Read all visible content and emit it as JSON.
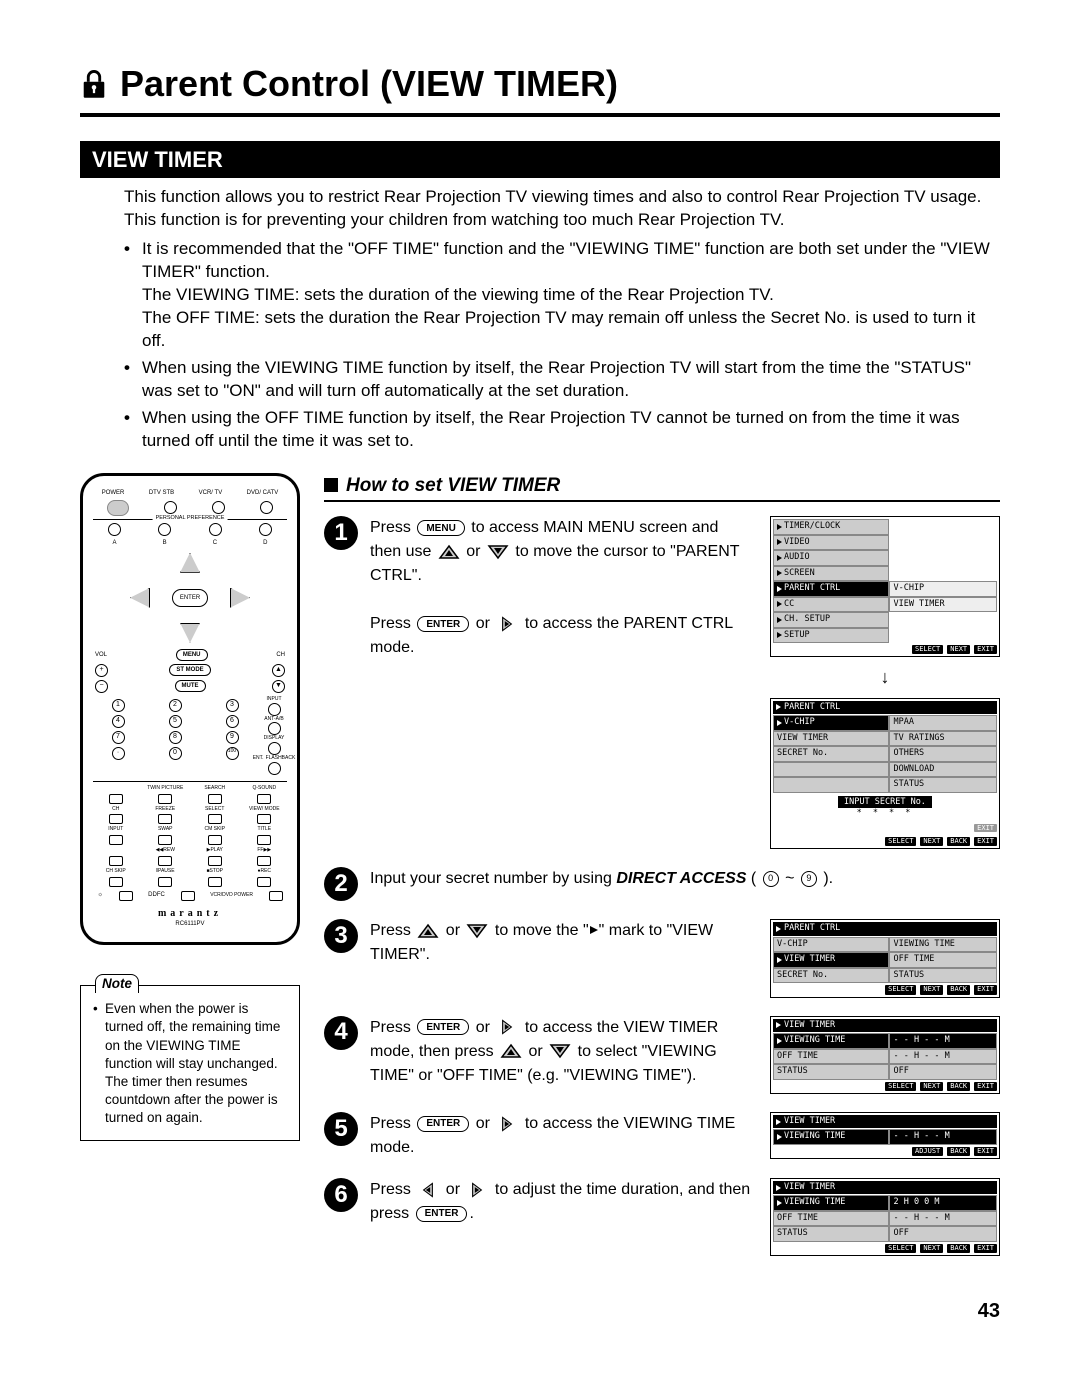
{
  "page_title": "Parent Control (VIEW TIMER)",
  "section_header": "VIEW TIMER",
  "intro": "This function allows you to restrict Rear Projection TV viewing times and also to control Rear Projection TV usage. This function is for preventing your children from watching too much Rear Projection TV.",
  "bullets": [
    {
      "main": "It is recommended that the \"OFF TIME\" function and the \"VIEWING TIME\" function are both set under the \"VIEW TIMER\" function.",
      "subs": [
        "The VIEWING TIME: sets the duration of the viewing time of the Rear Projection TV.",
        "The OFF TIME: sets the duration the Rear Projection TV may remain off unless the Secret No. is used to turn it off."
      ]
    },
    {
      "main": "When using the VIEWING TIME function by itself, the Rear Projection TV will start from the time the \"STATUS\" was set to \"ON\" and will turn off automatically at the set duration.",
      "subs": []
    },
    {
      "main": "When using the OFF TIME function by itself, the Rear Projection TV cannot be turned on from the time it was turned off until the time it was set to.",
      "subs": []
    }
  ],
  "subheading": "How to set VIEW TIMER",
  "buttons": {
    "menu": "MENU",
    "enter": "ENTER",
    "direct_access": "DIRECT ACCESS",
    "zero": "0",
    "nine": "9"
  },
  "steps": [
    {
      "n": "1",
      "text_parts": {
        "a": "Press ",
        "b": " to access MAIN MENU screen and then use ",
        "c": " or ",
        "d": " to move the cursor to \"PARENT CTRL\".",
        "e": "Press ",
        "f": " or ",
        "g": " to access the PARENT CTRL mode."
      }
    },
    {
      "n": "2",
      "text_parts": {
        "a": "Input your secret number by using ",
        "b": " ( ",
        "c": " ~ ",
        "d": " )."
      }
    },
    {
      "n": "3",
      "text_parts": {
        "a": "Press ",
        "b": " or ",
        "c": " to move the \"",
        "d": "\" mark to \"VIEW TIMER\"."
      }
    },
    {
      "n": "4",
      "text_parts": {
        "a": "Press ",
        "b": " or ",
        "c": " to access the VIEW TIMER mode, then press ",
        "d": " or ",
        "e": " to select \"VIEWING TIME\" or \"OFF TIME\" (e.g. \"VIEWING TIME\")."
      }
    },
    {
      "n": "5",
      "text_parts": {
        "a": "Press ",
        "b": " or ",
        "c": " to access the VIEWING TIME mode."
      }
    },
    {
      "n": "6",
      "text_parts": {
        "a": "Press ",
        "b": " or ",
        "c": " to adjust the time duration, and then press ",
        "d": "."
      }
    }
  ],
  "osd": {
    "foot_select": "SELECT",
    "foot_next": "NEXT",
    "foot_back": "BACK",
    "foot_exit": "EXIT",
    "foot_adjust": "ADJUST",
    "menu1": {
      "left": [
        "TIMER/CLOCK",
        "VIDEO",
        "AUDIO",
        "SCREEN",
        "PARENT CTRL",
        "CC",
        "CH. SETUP",
        "SETUP"
      ],
      "right": [
        "V-CHIP",
        "VIEW TIMER"
      ]
    },
    "menu2": {
      "hdr": "PARENT CTRL",
      "left": [
        "V-CHIP",
        "VIEW TIMER",
        "SECRET No."
      ],
      "right": [
        "MPAA",
        "TV RATINGS",
        "OTHERS",
        "DOWNLOAD",
        "STATUS"
      ],
      "prompt": "INPUT SECRET No.",
      "stars": "* * * *",
      "exit": "EXIT"
    },
    "menu3": {
      "hdr": "PARENT CTRL",
      "left": [
        "V-CHIP",
        "VIEW TIMER",
        "SECRET No."
      ],
      "right": [
        "VIEWING TIME",
        "OFF TIME",
        "STATUS"
      ]
    },
    "menu4": {
      "hdr": "VIEW TIMER",
      "rows": [
        [
          "VIEWING TIME",
          "- - H  - - M"
        ],
        [
          "OFF TIME",
          "- - H  - - M"
        ],
        [
          "STATUS",
          "OFF"
        ]
      ]
    },
    "menu5": {
      "hdr": "VIEW TIMER",
      "rows": [
        [
          "VIEWING TIME",
          "- - H  - - M"
        ]
      ]
    },
    "menu6": {
      "hdr": "VIEW TIMER",
      "rows": [
        [
          "VIEWING TIME",
          "2 H  0 0 M"
        ],
        [
          "OFF TIME",
          "- - H  - - M"
        ],
        [
          "STATUS",
          "OFF"
        ]
      ]
    }
  },
  "remote": {
    "top_labels": [
      "POWER",
      "DTV STB",
      "VCR/ TV",
      "DVD/ CATV"
    ],
    "personal_pref": "PERSONAL PREFERENCE",
    "abcd": [
      "A",
      "B",
      "C",
      "D"
    ],
    "enter": "ENTER",
    "side_labels": {
      "vol": "VOL",
      "ch": "CH",
      "menu": "MENU",
      "stmode": "ST MODE",
      "mute": "MUTE"
    },
    "numpad": [
      "1",
      "2",
      "3",
      "4",
      "5",
      "6",
      "7",
      "8",
      "9",
      "·",
      "0",
      "100"
    ],
    "right_tiny": [
      "INPUT",
      "ANT-A/B",
      "DISPLAY",
      "ENT.",
      "FLASHBACK"
    ],
    "grid_labels": [
      [
        "",
        "TWIN PICTURE",
        "SEARCH",
        "Q-SOUND"
      ],
      [
        "CH",
        "FREEZE",
        "SELECT",
        "VIEW/ MODE"
      ],
      [
        "INPUT",
        "SWAP",
        "CM SKIP",
        "TITLE"
      ],
      [
        "",
        "◀◀REW",
        "▶PLAY",
        "FF▶▶"
      ],
      [
        "CH SKIP",
        "‖PAUSE",
        "■STOP",
        "●REC"
      ]
    ],
    "bottom": [
      "☼",
      "DDFC",
      "VCR/DVD POWER"
    ],
    "brand": "marantz",
    "model": "RC6111PV"
  },
  "note": {
    "label": "Note",
    "text": "Even when the power is turned off, the remaining time on the VIEWING TIME function will stay unchanged. The timer then resumes countdown after the power is turned on again."
  },
  "page_number": "43"
}
